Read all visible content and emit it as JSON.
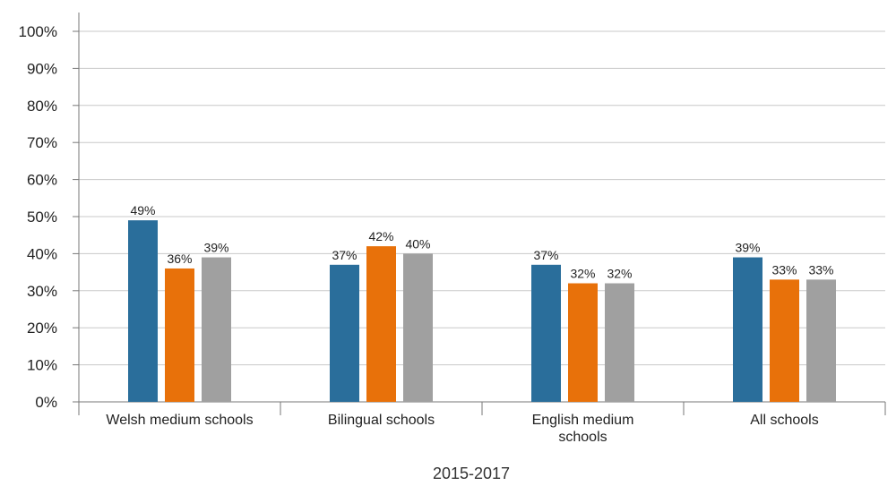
{
  "chart_data": {
    "type": "bar",
    "categories": [
      "Welsh medium schools",
      "Bilingual schools",
      "English medium schools",
      "All schools"
    ],
    "series": [
      {
        "values": [
          49,
          37,
          37,
          39
        ]
      },
      {
        "values": [
          36,
          42,
          32,
          33
        ]
      },
      {
        "values": [
          39,
          40,
          32,
          33
        ]
      }
    ],
    "colors": [
      "#2a6e9b",
      "#e8710a",
      "#a0a0a0"
    ],
    "xlabel": "2015-2017",
    "ylabel": "",
    "ylim": [
      0,
      100
    ],
    "ytick_step": 10,
    "value_suffix": "%",
    "grid": true,
    "legend": false
  }
}
